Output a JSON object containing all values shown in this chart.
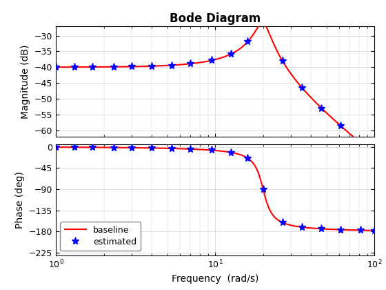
{
  "title": "Bode Diagram",
  "xlabel": "Frequency  (rad/s)",
  "ylabel_mag": "Magnitude (dB)",
  "ylabel_phase": "Phase (deg)",
  "freq_min": 1.0,
  "freq_max": 100.0,
  "mag_ylim": [
    -62,
    -27
  ],
  "mag_yticks": [
    -60,
    -55,
    -50,
    -45,
    -40,
    -35,
    -30
  ],
  "phase_ylim": [
    -230,
    5
  ],
  "phase_yticks": [
    -225,
    -180,
    -135,
    -90,
    -45,
    0
  ],
  "baseline_color": "#ff0000",
  "estimated_color": "#0000ff",
  "baseline_linewidth": 1.5,
  "legend_loc": "lower left",
  "title_fontsize": 12,
  "axis_fontsize": 10,
  "tick_fontsize": 9,
  "transfer_fn": {
    "K": 0.01,
    "wn": 20.0,
    "zeta": 0.1
  },
  "marker_freqs": [
    1.0,
    1.3,
    1.7,
    2.3,
    3.0,
    4.0,
    5.3,
    7.0,
    9.5,
    12.5,
    16.0,
    20.0,
    26.5,
    35.0,
    46.5,
    61.5,
    81.5,
    100.0
  ],
  "bg_color": "#ffffff",
  "grid_color": "#d0d0d0",
  "spine_color": "#000000"
}
